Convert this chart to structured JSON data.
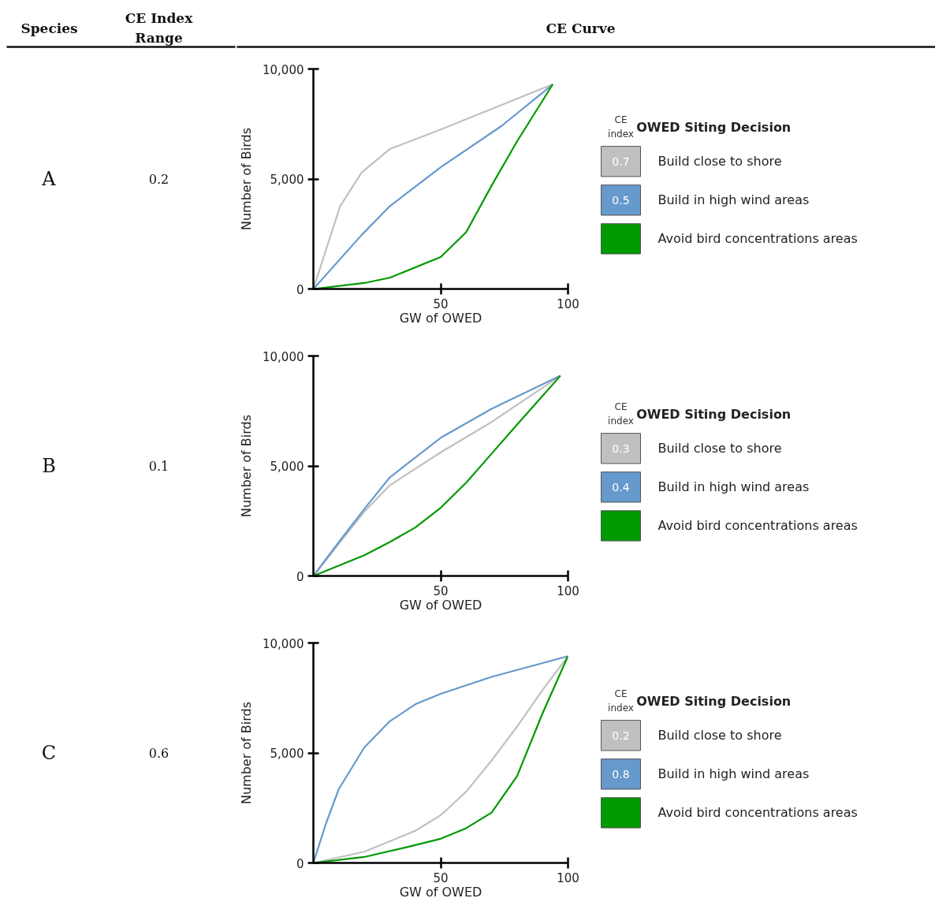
{
  "chart_data": [
    {
      "type": "line",
      "xlabel": "GW of OWED",
      "ylabel": "Number of Birds",
      "legend_title": "OWED Siting Decision",
      "legend": "right",
      "grid": false,
      "xlim": [
        0,
        100
      ],
      "ylim": [
        0,
        10000
      ],
      "xticks": [
        50,
        100
      ],
      "yticks": [
        {
          "value": 0,
          "label": "0"
        },
        {
          "value": 5000,
          "label": "5,000"
        },
        {
          "value": 10000,
          "label": "10,000"
        }
      ],
      "annotations": [
        "A",
        "0.2",
        "CE index",
        "0.7",
        "0.5",
        "Species",
        "CE Index Range",
        "CE Curve"
      ],
      "series": [
        {
          "name": "Build close to shore",
          "color": "#c0c0c0",
          "x": [
            0,
            10.5,
            19,
            30,
            50,
            74,
            94
          ],
          "values": [
            0,
            3760,
            5300,
            6360,
            7250,
            8370,
            9300
          ]
        },
        {
          "name": "Build in high wind areas",
          "color": "#6699cc",
          "x": [
            0,
            19,
            30,
            50,
            74,
            94
          ],
          "values": [
            0,
            2460,
            3760,
            5530,
            7420,
            9300
          ]
        },
        {
          "name": "Avoid bird concentrations areas",
          "color": "#009900",
          "x": [
            0,
            20,
            30,
            50,
            60,
            70,
            80,
            94
          ],
          "values": [
            0,
            270,
            510,
            1450,
            2580,
            4700,
            6710,
            9300
          ]
        }
      ]
    },
    {
      "type": "line",
      "xlabel": "GW of OWED",
      "ylabel": "Number of Birds",
      "legend_title": "OWED Siting Decision",
      "legend": "right",
      "grid": false,
      "xlim": [
        0,
        100
      ],
      "ylim": [
        0,
        10000
      ],
      "xticks": [
        50,
        100
      ],
      "yticks": [
        {
          "value": 0,
          "label": "0"
        },
        {
          "value": 5000,
          "label": "5,000"
        },
        {
          "value": 10000,
          "label": "10,000"
        }
      ],
      "annotations": [
        "B",
        "0.1",
        "CE index",
        "0.3",
        "0.4"
      ],
      "series": [
        {
          "name": "Build close to shore",
          "color": "#c0c0c0",
          "x": [
            0,
            20,
            30,
            50,
            70,
            97
          ],
          "values": [
            0,
            2920,
            4120,
            5620,
            7000,
            9100
          ]
        },
        {
          "name": "Build in high wind areas",
          "color": "#6699cc",
          "x": [
            0,
            10,
            20,
            30,
            50,
            70,
            97
          ],
          "values": [
            0,
            1540,
            3040,
            4480,
            6280,
            7600,
            9100
          ]
        },
        {
          "name": "Avoid bird concentrations areas",
          "color": "#009900",
          "x": [
            0,
            20,
            30,
            40,
            50,
            60,
            70,
            80,
            97
          ],
          "values": [
            0,
            940,
            1540,
            2200,
            3100,
            4240,
            5560,
            6880,
            9100
          ]
        }
      ]
    },
    {
      "type": "line",
      "xlabel": "GW of OWED",
      "ylabel": "Number of Birds",
      "legend_title": "OWED Siting Decision",
      "legend": "right",
      "grid": false,
      "xlim": [
        0,
        100
      ],
      "ylim": [
        0,
        10000
      ],
      "xticks": [
        50,
        100
      ],
      "yticks": [
        {
          "value": 0,
          "label": "0"
        },
        {
          "value": 5000,
          "label": "5,000"
        },
        {
          "value": 10000,
          "label": "10,000"
        }
      ],
      "annotations": [
        "C",
        "0.6",
        "CE index",
        "0.2",
        "0.8"
      ],
      "series": [
        {
          "name": "Build close to shore",
          "color": "#c0c0c0",
          "x": [
            0,
            20,
            40,
            50,
            60,
            70,
            80,
            90,
            100
          ],
          "values": [
            0,
            510,
            1460,
            2170,
            3240,
            4660,
            6200,
            7860,
            9400
          ]
        },
        {
          "name": "Build in high wind areas",
          "color": "#6699cc",
          "x": [
            0,
            5,
            10,
            20,
            30,
            40,
            50,
            70,
            100
          ],
          "values": [
            0,
            1810,
            3360,
            5250,
            6440,
            7210,
            7690,
            8460,
            9400
          ]
        },
        {
          "name": "Avoid bird concentrations areas",
          "color": "#009900",
          "x": [
            0,
            20,
            40,
            50,
            60,
            70,
            80,
            90,
            100
          ],
          "values": [
            0,
            270,
            810,
            1100,
            1580,
            2290,
            3950,
            6800,
            9400
          ]
        }
      ]
    }
  ]
}
